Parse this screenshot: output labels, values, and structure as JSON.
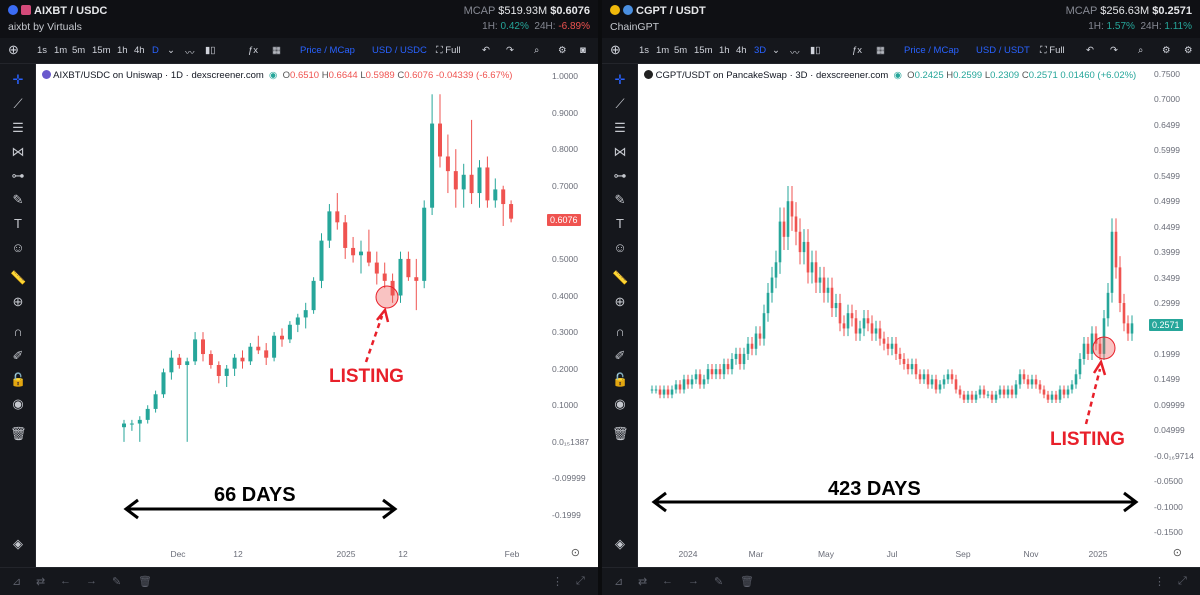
{
  "left": {
    "header": {
      "pair": "AIXBT / USDC",
      "subtitle": "aixbt by Virtuals",
      "mcap_label": "MCAP",
      "mcap_value": "$519.93M",
      "price": "$0.6076",
      "h1_label": "1H:",
      "h1_value": "0.42%",
      "h24_label": "24H:",
      "h24_value": "-6.89%"
    },
    "toolbar": {
      "intervals": [
        "1s",
        "1m",
        "5m",
        "15m",
        "1h",
        "4h",
        "D"
      ],
      "price_mcap": "Price / MCap",
      "currency": "USD / USDC",
      "full": "Full"
    },
    "legend": {
      "title": "AIXBT/USDC on Uniswap · 1D · dexscreener.com",
      "o": "0.6510",
      "h": "0.6644",
      "l": "0.5989",
      "c": "0.6076",
      "chg": "-0.04339 (-6.67%)"
    },
    "price_tag": "0.6076",
    "annotation": "66 DAYS",
    "listing": "LISTING",
    "colors": {
      "up": "#26a69a",
      "down": "#ef5350",
      "tag": "#ef5350"
    }
  },
  "right": {
    "header": {
      "pair": "CGPT / USDT",
      "subtitle": "ChainGPT",
      "mcap_label": "MCAP",
      "mcap_value": "$256.63M",
      "price": "$0.2571",
      "h1_label": "1H:",
      "h1_value": "1.57%",
      "h24_label": "24H:",
      "h24_value": "1.11%"
    },
    "toolbar": {
      "intervals": [
        "1s",
        "1m",
        "5m",
        "15m",
        "1h",
        "4h",
        "3D"
      ],
      "price_mcap": "Price / MCap",
      "currency": "USD / USDT",
      "full": "Full"
    },
    "legend": {
      "title": "CGPT/USDT on PancakeSwap · 3D · dexscreener.com",
      "o": "0.2425",
      "h": "0.2599",
      "l": "0.2309",
      "c": "0.2571",
      "chg": "0.01460 (+6.02%)"
    },
    "price_tag": "0.2571",
    "annotation": "423 DAYS",
    "listing": "LISTING",
    "colors": {
      "up": "#26a69a",
      "down": "#ef5350",
      "tag": "#26a69a"
    }
  },
  "chart_data": [
    {
      "type": "candlestick",
      "title": "AIXBT/USDC on Uniswap · 1D · dexscreener.com",
      "ylim": [
        -0.2,
        1.0
      ],
      "yticks": [
        "1.0000",
        "0.9000",
        "0.8000",
        "0.7000",
        "0.6000",
        "0.5000",
        "0.4000",
        "0.3000",
        "0.2000",
        "0.1000",
        "0.0₁₅1387",
        "-0.09999",
        "-0.1999"
      ],
      "xticks": [
        "Dec",
        "12",
        "2025",
        "12",
        "Feb"
      ],
      "ohlc": [
        [
          0.04,
          0.06,
          0.0,
          0.05
        ],
        [
          0.05,
          0.06,
          0.03,
          0.05
        ],
        [
          0.05,
          0.07,
          0.0,
          0.06
        ],
        [
          0.06,
          0.1,
          0.05,
          0.09
        ],
        [
          0.09,
          0.14,
          0.08,
          0.13
        ],
        [
          0.13,
          0.2,
          0.12,
          0.19
        ],
        [
          0.19,
          0.25,
          0.17,
          0.23
        ],
        [
          0.23,
          0.24,
          0.2,
          0.21
        ],
        [
          0.21,
          0.23,
          0.0,
          0.22
        ],
        [
          0.22,
          0.3,
          0.21,
          0.28
        ],
        [
          0.28,
          0.3,
          0.22,
          0.24
        ],
        [
          0.24,
          0.25,
          0.2,
          0.21
        ],
        [
          0.21,
          0.22,
          0.16,
          0.18
        ],
        [
          0.18,
          0.21,
          0.15,
          0.2
        ],
        [
          0.2,
          0.24,
          0.18,
          0.23
        ],
        [
          0.23,
          0.25,
          0.2,
          0.22
        ],
        [
          0.22,
          0.27,
          0.21,
          0.26
        ],
        [
          0.26,
          0.29,
          0.24,
          0.25
        ],
        [
          0.25,
          0.27,
          0.21,
          0.23
        ],
        [
          0.23,
          0.3,
          0.22,
          0.29
        ],
        [
          0.29,
          0.31,
          0.26,
          0.28
        ],
        [
          0.28,
          0.33,
          0.27,
          0.32
        ],
        [
          0.32,
          0.35,
          0.3,
          0.34
        ],
        [
          0.34,
          0.38,
          0.31,
          0.36
        ],
        [
          0.36,
          0.45,
          0.35,
          0.44
        ],
        [
          0.44,
          0.57,
          0.42,
          0.55
        ],
        [
          0.55,
          0.65,
          0.53,
          0.63
        ],
        [
          0.63,
          0.68,
          0.58,
          0.6
        ],
        [
          0.6,
          0.62,
          0.5,
          0.53
        ],
        [
          0.53,
          0.56,
          0.49,
          0.51
        ],
        [
          0.51,
          0.55,
          0.46,
          0.52
        ],
        [
          0.52,
          0.58,
          0.48,
          0.49
        ],
        [
          0.49,
          0.52,
          0.43,
          0.46
        ],
        [
          0.46,
          0.49,
          0.42,
          0.44
        ],
        [
          0.44,
          0.46,
          0.38,
          0.4
        ],
        [
          0.4,
          0.52,
          0.38,
          0.5
        ],
        [
          0.5,
          0.52,
          0.44,
          0.45
        ],
        [
          0.45,
          0.5,
          0.36,
          0.44
        ],
        [
          0.44,
          0.66,
          0.42,
          0.64
        ],
        [
          0.64,
          0.95,
          0.62,
          0.87
        ],
        [
          0.87,
          0.95,
          0.75,
          0.78
        ],
        [
          0.78,
          0.84,
          0.68,
          0.74
        ],
        [
          0.74,
          0.8,
          0.64,
          0.69
        ],
        [
          0.69,
          0.76,
          0.64,
          0.73
        ],
        [
          0.73,
          0.88,
          0.65,
          0.68
        ],
        [
          0.68,
          0.77,
          0.64,
          0.75
        ],
        [
          0.75,
          0.78,
          0.64,
          0.66
        ],
        [
          0.66,
          0.72,
          0.64,
          0.69
        ],
        [
          0.69,
          0.7,
          0.59,
          0.65
        ],
        [
          0.65,
          0.66,
          0.6,
          0.61
        ]
      ],
      "annotation": "66 DAYS",
      "marker": "LISTING"
    },
    {
      "type": "candlestick",
      "title": "CGPT/USDT on PancakeSwap · 3D · dexscreener.com",
      "ylim": [
        -0.15,
        0.75
      ],
      "yticks": [
        "0.7500",
        "0.7000",
        "0.6499",
        "0.5999",
        "0.5499",
        "0.4999",
        "0.4499",
        "0.3999",
        "0.3499",
        "0.2999",
        "0.2499",
        "0.1999",
        "0.1499",
        "0.09999",
        "0.04999",
        "-0.0₁₆9714",
        "-0.0500",
        "-0.1000",
        "-0.1500"
      ],
      "xticks": [
        "2024",
        "Mar",
        "May",
        "Jul",
        "Sep",
        "Nov",
        "2025"
      ],
      "closes": [
        0.13,
        0.13,
        0.12,
        0.13,
        0.12,
        0.13,
        0.14,
        0.13,
        0.15,
        0.14,
        0.15,
        0.16,
        0.14,
        0.15,
        0.17,
        0.16,
        0.17,
        0.16,
        0.18,
        0.17,
        0.19,
        0.2,
        0.18,
        0.2,
        0.22,
        0.21,
        0.24,
        0.23,
        0.28,
        0.32,
        0.35,
        0.38,
        0.46,
        0.43,
        0.5,
        0.47,
        0.44,
        0.4,
        0.42,
        0.36,
        0.38,
        0.34,
        0.35,
        0.32,
        0.33,
        0.29,
        0.3,
        0.26,
        0.25,
        0.28,
        0.27,
        0.24,
        0.25,
        0.27,
        0.26,
        0.24,
        0.25,
        0.23,
        0.22,
        0.21,
        0.22,
        0.2,
        0.19,
        0.18,
        0.17,
        0.18,
        0.16,
        0.15,
        0.16,
        0.14,
        0.15,
        0.13,
        0.14,
        0.15,
        0.16,
        0.15,
        0.13,
        0.12,
        0.11,
        0.12,
        0.11,
        0.12,
        0.13,
        0.12,
        0.12,
        0.11,
        0.12,
        0.13,
        0.12,
        0.13,
        0.12,
        0.14,
        0.16,
        0.15,
        0.14,
        0.15,
        0.14,
        0.13,
        0.12,
        0.11,
        0.12,
        0.11,
        0.13,
        0.12,
        0.13,
        0.14,
        0.16,
        0.19,
        0.22,
        0.2,
        0.24,
        0.22,
        0.2,
        0.27,
        0.32,
        0.44,
        0.37,
        0.3,
        0.26,
        0.24,
        0.26
      ],
      "annotation": "423 DAYS",
      "marker": "LISTING"
    }
  ]
}
